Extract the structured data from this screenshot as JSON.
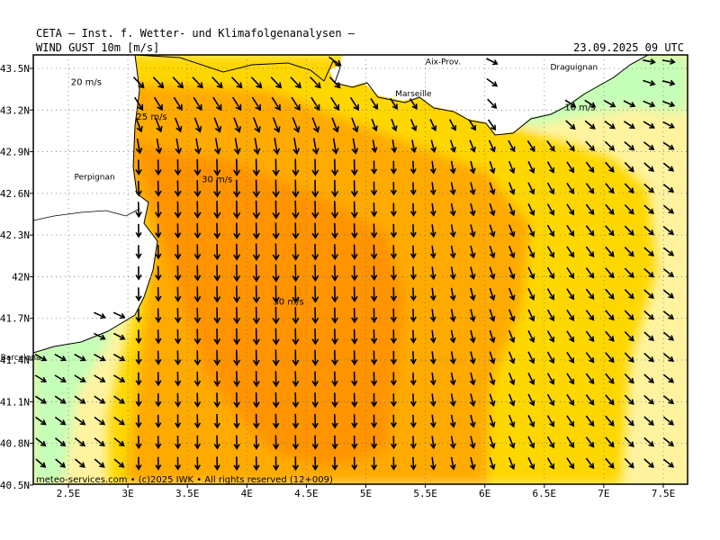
{
  "header": {
    "institute": "CETA — Inst. f. Wetter- und Klimafolgenanalysen —",
    "parameter": "WIND GUST 10m [m/s]",
    "valid_time": "23.09.2025 09 UTC"
  },
  "axes": {
    "lat_labels": [
      "43.5N",
      "43.2N",
      "42.9N",
      "42.6N",
      "42.3N",
      "42N",
      "41.7N",
      "41.4N",
      "41.1N",
      "40.8N",
      "40.5N"
    ],
    "lon_labels": [
      "2.5E",
      "3E",
      "3.5E",
      "4E",
      "4.5E",
      "5E",
      "5.5E",
      "6E",
      "6.5E",
      "7E",
      "7.5E"
    ],
    "lat_values": [
      43.5,
      43.2,
      42.9,
      42.6,
      42.3,
      42.0,
      41.7,
      41.4,
      41.1,
      40.8,
      40.5
    ],
    "lon_values": [
      2.5,
      3.0,
      3.5,
      4.0,
      4.5,
      5.0,
      5.5,
      6.0,
      6.5,
      7.0,
      7.5
    ]
  },
  "places": [
    {
      "name": "Aix-Prov.",
      "lon": 5.65,
      "lat": 43.53
    },
    {
      "name": "Marseille",
      "lon": 5.4,
      "lat": 43.3
    },
    {
      "name": "Draguignan",
      "lon": 6.75,
      "lat": 43.49
    },
    {
      "name": "Perpignan",
      "lon": 2.72,
      "lat": 42.7
    },
    {
      "name": "Barcelona",
      "lon": 2.1,
      "lat": 41.4
    }
  ],
  "contour_labels": [
    {
      "text": "20 m/s",
      "lon": 2.65,
      "lat": 43.38
    },
    {
      "text": "25 m/s",
      "lon": 3.2,
      "lat": 43.13
    },
    {
      "text": "30 m/s",
      "lon": 3.75,
      "lat": 42.68
    },
    {
      "text": "30 m/s",
      "lon": 4.35,
      "lat": 41.8
    },
    {
      "text": "10 m/s",
      "lon": 6.8,
      "lat": 43.2
    }
  ],
  "legend_colors": {
    "lt10": "#e8ffe0",
    "10_15": "#c6ffb8",
    "15_20": "#fff3a0",
    "20_25": "#ffd700",
    "25_30": "#ffaa00",
    "gt30": "#ff9400",
    "land": "#ffffff",
    "coast": "#000000"
  },
  "footer": "meteo-services.com • (c)2025 IWK • All rights reserved (12+009)"
}
